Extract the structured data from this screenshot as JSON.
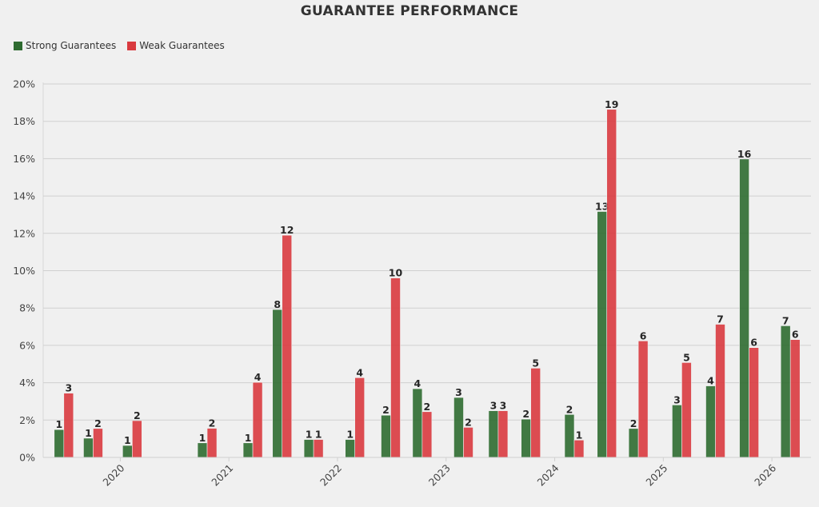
{
  "chart_data": {
    "type": "bar",
    "title": "GUARANTEE PERFORMANCE",
    "xlabel": "",
    "ylabel": "",
    "ylim": [
      0,
      20
    ],
    "xlim": [
      2019.29,
      2026.36
    ],
    "yticks": [
      0,
      2,
      4,
      6,
      8,
      10,
      12,
      14,
      16,
      18,
      20
    ],
    "ytick_labels": [
      "0%",
      "2%",
      "4%",
      "6%",
      "8%",
      "10%",
      "12%",
      "14%",
      "16%",
      "18%",
      "20%"
    ],
    "xticks": [
      2020,
      2021,
      2022,
      2023,
      2024,
      2025,
      2026
    ],
    "xtick_labels": [
      "2020",
      "2021",
      "2022",
      "2023",
      "2024",
      "2025",
      "2026"
    ],
    "grid": true,
    "legend_placement": "top-left",
    "x": [
      2019.48,
      2019.75,
      2020.11,
      2020.8,
      2021.22,
      2021.49,
      2021.78,
      2022.16,
      2022.49,
      2022.78,
      2023.16,
      2023.48,
      2023.78,
      2024.18,
      2024.48,
      2024.77,
      2025.17,
      2025.48,
      2025.79,
      2026.17
    ],
    "series": [
      {
        "name": "Strong Guarantees",
        "color": "#2e6b30",
        "values": [
          1.49,
          1.03,
          0.64,
          0.78,
          0.78,
          7.92,
          0.96,
          0.96,
          2.26,
          3.68,
          3.21,
          2.5,
          2.05,
          2.3,
          13.17,
          1.55,
          2.81,
          3.83,
          15.98,
          7.05
        ],
        "labels": [
          "1",
          "1",
          "1",
          "1",
          "1",
          "8",
          "1",
          "1",
          "2",
          "4",
          "3",
          "3",
          "2",
          "2",
          "13",
          "2",
          "3",
          "4",
          "16",
          "7"
        ]
      },
      {
        "name": "Weak Guarantees",
        "color": "#d93a3f",
        "values": [
          3.44,
          1.55,
          1.97,
          1.56,
          4.02,
          11.9,
          0.96,
          4.27,
          9.61,
          2.45,
          1.61,
          2.5,
          4.78,
          0.93,
          18.64,
          6.24,
          5.08,
          7.13,
          5.88,
          6.31
        ],
        "labels": [
          "3",
          "2",
          "2",
          "2",
          "4",
          "12",
          "1",
          "4",
          "10",
          "2",
          "2",
          "3",
          "5",
          "1",
          "19",
          "6",
          "5",
          "7",
          "6",
          "6"
        ]
      }
    ]
  }
}
